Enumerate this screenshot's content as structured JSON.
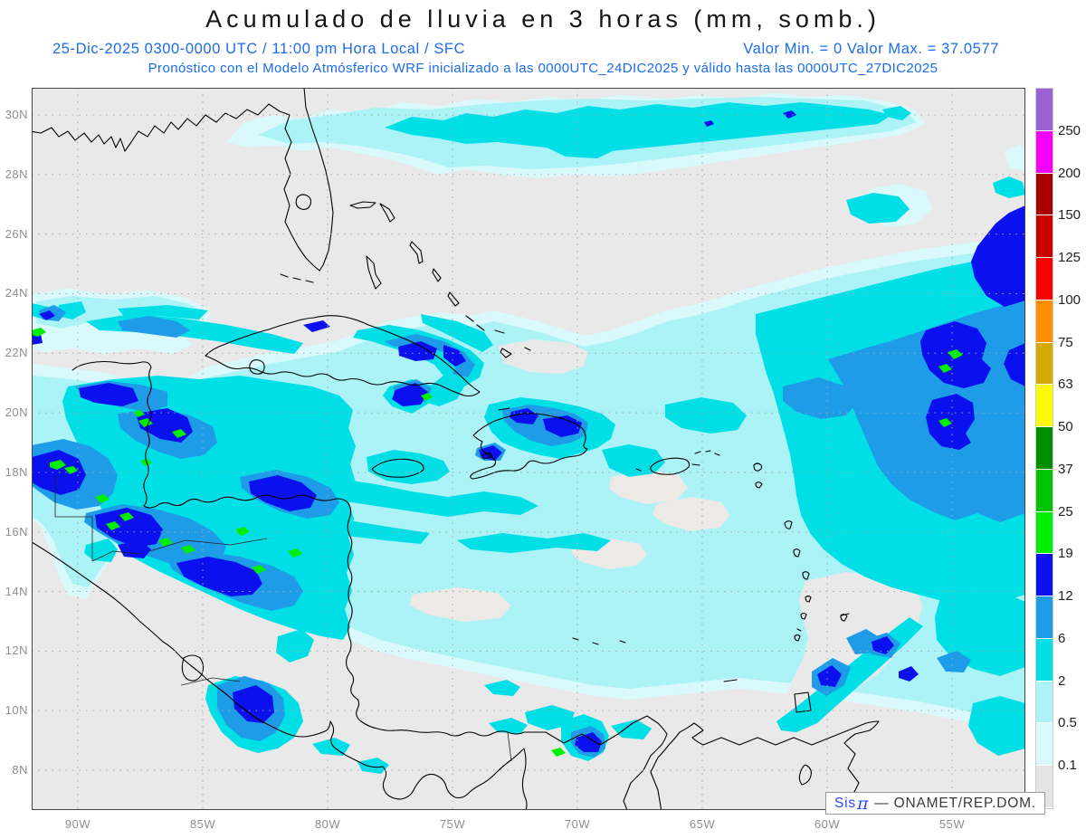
{
  "header": {
    "title": "Acumulado de lluvia en 3 horas (mm, somb.)",
    "line2_left": "25-Dic-2025   0300-0000 UTC / 11:00 pm Hora Local / SFC",
    "line2_right": "Valor Min. = 0   Valor Max. = 37.0577",
    "line3": "Pronóstico con el Modelo Atmósferico WRF inicializado a las 0000UTC_24DIC2025 y válido hasta las  0000UTC_27DIC2025",
    "title_color": "#151515",
    "subtitle_color": "#1b6cf0"
  },
  "map": {
    "lat_labels": [
      "30N",
      "28N",
      "26N",
      "24N",
      "22N",
      "20N",
      "18N",
      "16N",
      "14N",
      "12N",
      "10N",
      "8N"
    ],
    "lon_labels": [
      "90W",
      "85W",
      "80W",
      "75W",
      "70W",
      "65W",
      "60W",
      "55W"
    ],
    "background_color": "#e9e9e9",
    "grid_color": "#a8a8a8",
    "coastline_color": "#000000"
  },
  "colorbar": {
    "labels_top_to_bottom": [
      "250",
      "200",
      "150",
      "125",
      "100",
      "75",
      "63",
      "50",
      "37",
      "25",
      "19",
      "12",
      "6",
      "2",
      "0.5",
      "0.1"
    ],
    "colors_top_to_bottom": [
      "#9a62d4",
      "#f800f8",
      "#a80000",
      "#c80000",
      "#fa0000",
      "#ff8f00",
      "#d4aa00",
      "#fbfb00",
      "#008f00",
      "#00c300",
      "#00ef00",
      "#0a10ee",
      "#1e9ce8",
      "#00dfe6",
      "#acf3f8",
      "#d9f9fc",
      "#e4e4e4"
    ]
  },
  "credit": {
    "app": "Sis",
    "pi": "π",
    "org": "—  ONAMET/REP.DOM."
  }
}
